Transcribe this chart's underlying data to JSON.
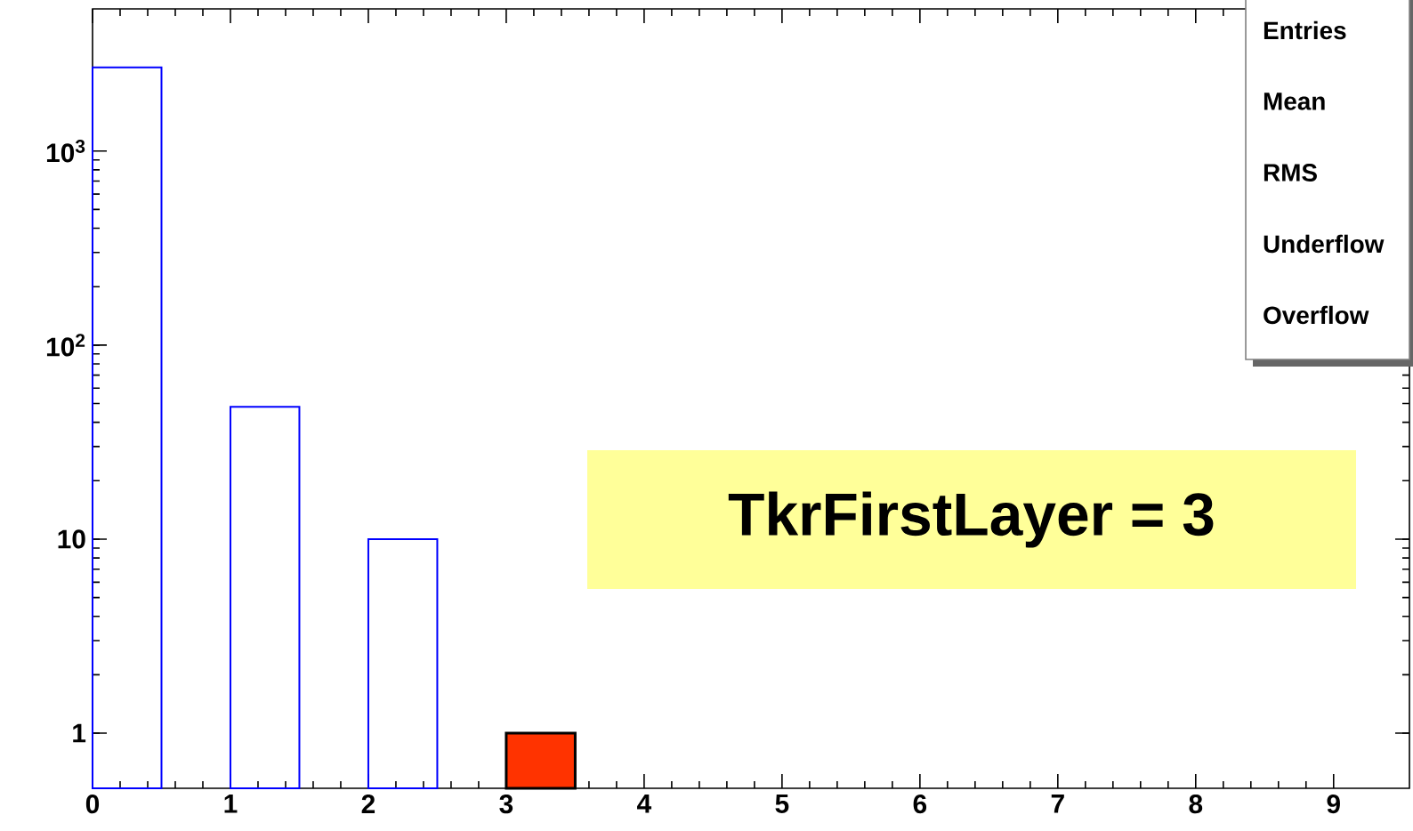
{
  "chart_data": {
    "type": "histogram",
    "log": "y",
    "bins": [
      0,
      0.5,
      1,
      1.5,
      2,
      2.5,
      3,
      3.5,
      4,
      4.5,
      5,
      5.5,
      6,
      6.5,
      7,
      7.5,
      8,
      8.5,
      9,
      9.5
    ],
    "series": [
      {
        "color": "#0000ff",
        "values": [
          2700,
          null,
          48,
          null,
          10,
          null,
          null,
          null,
          null,
          null,
          null,
          null,
          null,
          null,
          null,
          null,
          null,
          null,
          null
        ]
      },
      {
        "color": "#ff3300",
        "values": [
          null,
          null,
          null,
          null,
          null,
          null,
          1,
          null,
          null,
          null,
          null,
          null,
          null,
          null,
          null,
          null,
          null,
          null,
          null
        ]
      }
    ],
    "xlim": [
      0,
      9.55
    ],
    "ylim": [
      0.52,
      5400
    ],
    "xticks": [
      0,
      1,
      2,
      3,
      4,
      5,
      6,
      7,
      8,
      9
    ],
    "yticks": [
      1,
      10,
      {
        "value": 100,
        "label": "10$^{2}$"
      },
      {
        "value": 1000,
        "label": "10$^{3}$"
      }
    ],
    "annotations": [
      "TkrFirstLayer = 3",
      "Entries",
      "Mean",
      "RMS",
      "Underflow",
      "Overflow"
    ]
  }
}
